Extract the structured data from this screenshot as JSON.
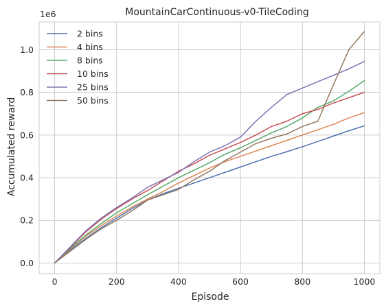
{
  "chart_data": {
    "type": "line",
    "title": "MountainCarContinuous-v0-TileCoding",
    "xlabel": "Episode",
    "ylabel": "Accumulated reward",
    "y_offset_label": "1e6",
    "xlim": [
      -50,
      1050
    ],
    "ylim": [
      -50000,
      1130000
    ],
    "xticks": [
      0,
      200,
      400,
      600,
      800,
      1000
    ],
    "yticks": [
      0,
      200000,
      400000,
      600000,
      800000,
      1000000
    ],
    "ytick_labels": [
      "0.0",
      "0.2",
      "0.4",
      "0.6",
      "0.8",
      "1.0"
    ],
    "grid": true,
    "legend_position": "upper-left",
    "series": [
      {
        "name": "2 bins",
        "color": "#4c72b0",
        "x": [
          0,
          50,
          100,
          150,
          200,
          250,
          300,
          350,
          400,
          450,
          500,
          550,
          600,
          650,
          700,
          750,
          800,
          850,
          900,
          950,
          1000
        ],
        "y": [
          0,
          60000,
          115000,
          165000,
          210000,
          255000,
          295000,
          325000,
          350000,
          375000,
          400000,
          425000,
          450000,
          475000,
          500000,
          522000,
          545000,
          570000,
          595000,
          620000,
          643000
        ]
      },
      {
        "name": "4 bins",
        "color": "#dd8452",
        "x": [
          0,
          50,
          100,
          150,
          200,
          250,
          300,
          350,
          400,
          450,
          500,
          550,
          600,
          650,
          700,
          750,
          800,
          850,
          900,
          950,
          1000
        ],
        "y": [
          0,
          65000,
          125000,
          175000,
          220000,
          262000,
          300000,
          335000,
          375000,
          410000,
          445000,
          475000,
          500000,
          525000,
          550000,
          575000,
          600000,
          625000,
          650000,
          680000,
          705000
        ]
      },
      {
        "name": "8 bins",
        "color": "#55a868",
        "x": [
          0,
          50,
          100,
          150,
          200,
          250,
          300,
          350,
          400,
          450,
          500,
          550,
          600,
          650,
          700,
          750,
          800,
          850,
          900,
          950,
          1000
        ],
        "y": [
          0,
          68000,
          130000,
          185000,
          235000,
          278000,
          320000,
          360000,
          400000,
          435000,
          470000,
          510000,
          540000,
          575000,
          610000,
          640000,
          680000,
          730000,
          760000,
          805000,
          855000
        ]
      },
      {
        "name": "10 bins",
        "color": "#c44e52",
        "x": [
          0,
          50,
          100,
          150,
          200,
          250,
          300,
          350,
          400,
          450,
          500,
          550,
          600,
          650,
          700,
          750,
          800,
          850,
          900,
          950,
          1000
        ],
        "y": [
          0,
          72000,
          145000,
          205000,
          255000,
          300000,
          340000,
          385000,
          430000,
          465000,
          505000,
          535000,
          565000,
          600000,
          640000,
          665000,
          700000,
          720000,
          750000,
          775000,
          800000
        ]
      },
      {
        "name": "25 bins",
        "color": "#8172b3",
        "x": [
          0,
          50,
          100,
          150,
          200,
          250,
          300,
          350,
          400,
          450,
          500,
          550,
          600,
          650,
          700,
          750,
          800,
          850,
          900,
          950,
          1000
        ],
        "y": [
          0,
          75000,
          150000,
          210000,
          260000,
          305000,
          355000,
          390000,
          425000,
          475000,
          520000,
          550000,
          590000,
          665000,
          730000,
          790000,
          820000,
          850000,
          880000,
          910000,
          945000
        ]
      },
      {
        "name": "50 bins",
        "color": "#937860",
        "x": [
          0,
          50,
          100,
          150,
          200,
          250,
          300,
          350,
          400,
          450,
          500,
          550,
          600,
          650,
          700,
          750,
          800,
          850,
          900,
          950,
          1000
        ],
        "y": [
          0,
          55000,
          110000,
          160000,
          200000,
          245000,
          295000,
          320000,
          345000,
          390000,
          430000,
          480000,
          520000,
          560000,
          585000,
          605000,
          640000,
          665000,
          835000,
          1000000,
          1085000
        ]
      }
    ]
  }
}
